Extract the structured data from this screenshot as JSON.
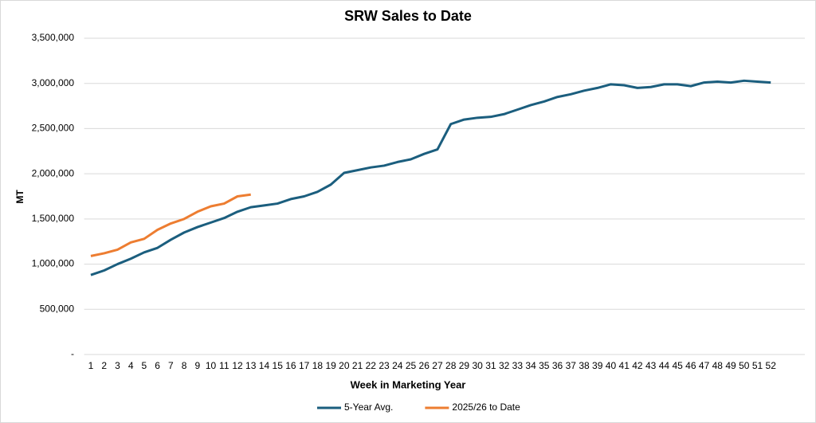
{
  "chart_data": {
    "type": "line",
    "title": "SRW Sales to Date",
    "x_label": "Week in Marketing Year",
    "y_label": "MT",
    "categories": [
      "1",
      "2",
      "3",
      "4",
      "5",
      "6",
      "7",
      "8",
      "9",
      "10",
      "11",
      "12",
      "13",
      "14",
      "15",
      "16",
      "17",
      "18",
      "19",
      "20",
      "21",
      "22",
      "23",
      "24",
      "25",
      "26",
      "27",
      "28",
      "29",
      "30",
      "31",
      "32",
      "33",
      "34",
      "35",
      "36",
      "37",
      "38",
      "39",
      "40",
      "41",
      "42",
      "43",
      "44",
      "45",
      "46",
      "47",
      "48",
      "49",
      "50",
      "51",
      "52"
    ],
    "series": [
      {
        "name": "5-Year Avg.",
        "color": "#1b5e7e",
        "values": [
          880000,
          930000,
          1000000,
          1060000,
          1130000,
          1180000,
          1270000,
          1350000,
          1410000,
          1460000,
          1510000,
          1580000,
          1630000,
          1650000,
          1670000,
          1720000,
          1750000,
          1800000,
          1880000,
          2010000,
          2040000,
          2070000,
          2090000,
          2130000,
          2160000,
          2220000,
          2270000,
          2550000,
          2600000,
          2620000,
          2630000,
          2660000,
          2710000,
          2760000,
          2800000,
          2850000,
          2880000,
          2920000,
          2950000,
          2990000,
          2980000,
          2950000,
          2960000,
          2990000,
          2990000,
          2970000,
          3010000,
          3020000,
          3010000,
          3030000,
          3020000,
          3010000
        ]
      },
      {
        "name": "2025/26 to Date",
        "color": "#ed7d31",
        "values": [
          1090000,
          1120000,
          1160000,
          1240000,
          1280000,
          1380000,
          1450000,
          1500000,
          1580000,
          1640000,
          1670000,
          1750000,
          1770000,
          null,
          null,
          null,
          null,
          null,
          null,
          null,
          null,
          null,
          null,
          null,
          null,
          null,
          null,
          null,
          null,
          null,
          null,
          null,
          null,
          null,
          null,
          null,
          null,
          null,
          null,
          null,
          null,
          null,
          null,
          null,
          null,
          null,
          null,
          null,
          null,
          null,
          null,
          null
        ]
      }
    ],
    "ylim": [
      0,
      3500000
    ],
    "yticks": [
      {
        "value": 0,
        "label": "-"
      },
      {
        "value": 500000,
        "label": "500,000"
      },
      {
        "value": 1000000,
        "label": "1,000,000"
      },
      {
        "value": 1500000,
        "label": "1,500,000"
      },
      {
        "value": 2000000,
        "label": "2,000,000"
      },
      {
        "value": 2500000,
        "label": "2,500,000"
      },
      {
        "value": 3000000,
        "label": "3,000,000"
      },
      {
        "value": 3500000,
        "label": "3,500,000"
      }
    ],
    "grid": true,
    "legend": "bottom"
  }
}
